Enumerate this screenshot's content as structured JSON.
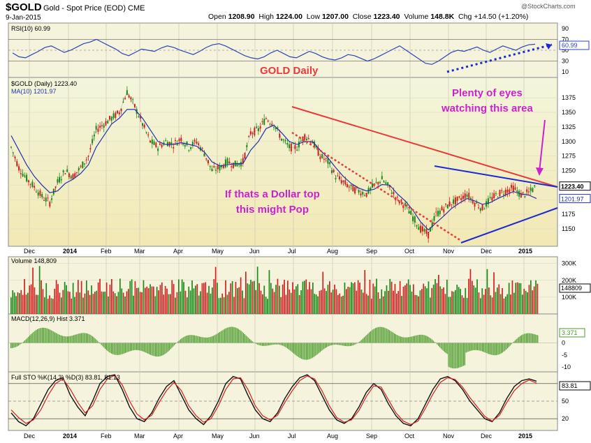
{
  "header": {
    "symbol": "$GOLD",
    "description": "Gold - Spot Price (EOD)  CME",
    "date": "9-Jan-2015",
    "watermark": "@StockCharts.com",
    "open_label": "Open",
    "open": "1208.90",
    "high_label": "High",
    "high": "1224.00",
    "low_label": "Low",
    "low": "1207.00",
    "close_label": "Close",
    "close": "1223.40",
    "volume_label": "Volume",
    "volume": "148.8K",
    "chg_label": "Chg",
    "chg": "+14.50 (+1.20%)"
  },
  "annotations": {
    "gold_daily": "GOLD Daily",
    "plenty_line1": "Plenty of eyes",
    "plenty_line2": "watching this area",
    "dollar_line1": "If thats a  Dollar top",
    "dollar_line2": "this might Pop"
  },
  "colors": {
    "panel_bg": "#f5f3dc",
    "price_bg_top": "#f3f6dc",
    "price_bg_bottom": "#f2e8b4",
    "up": "#1a8a1a",
    "down": "#d42020",
    "ma": "#2233aa",
    "rsi": "#2a44bb",
    "trend_red": "#e83a3a",
    "trend_blue": "#1a2ad0",
    "annot_red": "#e83a3a",
    "annot_magenta": "#cc22cc"
  },
  "chart_data": [
    {
      "type": "line",
      "title": "RSI(10) 60.99",
      "value_label": "60.99",
      "ylim": [
        0,
        100
      ],
      "y_ticks": [
        "90",
        "70",
        "50",
        "30",
        "10"
      ],
      "ref_lines": [
        70,
        30
      ],
      "series": [
        {
          "name": "RSI(10)",
          "values": [
            45,
            38,
            36,
            42,
            48,
            55,
            58,
            52,
            46,
            50,
            56,
            62,
            65,
            70,
            64,
            58,
            52,
            44,
            40,
            46,
            52,
            50,
            48,
            54,
            58,
            55,
            50,
            46,
            42,
            48,
            55,
            60,
            62,
            58,
            52,
            46,
            40,
            36,
            34,
            38,
            45,
            50,
            44,
            38,
            36,
            42,
            48,
            44,
            38,
            34,
            32,
            36,
            42,
            40,
            35,
            30,
            34,
            40,
            46,
            52,
            58,
            50,
            42,
            34,
            26,
            24,
            30,
            38,
            46,
            50,
            48,
            52,
            56,
            50,
            46,
            52,
            58,
            54,
            50,
            56,
            60,
            61
          ]
        }
      ]
    },
    {
      "type": "line",
      "title": "$GOLD (Daily) 1223.40",
      "ma_label": "MA(10) 1201.97",
      "last_price": "1223.40",
      "last_ma": "1201.97",
      "ylim": [
        1120,
        1410
      ],
      "y_ticks": [
        "1375",
        "1350",
        "1325",
        "1300",
        "1275",
        "1250",
        "1225",
        "1200",
        "1175",
        "1150"
      ],
      "x_tick_labels": [
        "Dec",
        "2014",
        "Feb",
        "Mar",
        "Apr",
        "May",
        "Jun",
        "Jul",
        "Aug",
        "Sep",
        "Oct",
        "Nov",
        "Dec",
        "2015"
      ],
      "series": [
        {
          "name": "$GOLD",
          "values": [
            1290,
            1255,
            1236,
            1222,
            1205,
            1195,
            1230,
            1250,
            1240,
            1255,
            1275,
            1320,
            1330,
            1340,
            1350,
            1385,
            1360,
            1330,
            1300,
            1290,
            1300,
            1295,
            1305,
            1290,
            1300,
            1280,
            1250,
            1255,
            1265,
            1260,
            1265,
            1315,
            1320,
            1340,
            1330,
            1305,
            1290,
            1290,
            1310,
            1300,
            1275,
            1265,
            1240,
            1230,
            1220,
            1215,
            1210,
            1225,
            1235,
            1220,
            1200,
            1190,
            1170,
            1150,
            1140,
            1175,
            1185,
            1195,
            1200,
            1210,
            1195,
            1185,
            1200,
            1210,
            1215,
            1220,
            1208,
            1212,
            1223
          ]
        },
        {
          "name": "MA(10)",
          "values": [
            1310,
            1285,
            1260,
            1240,
            1225,
            1212,
            1215,
            1228,
            1235,
            1245,
            1260,
            1290,
            1310,
            1330,
            1340,
            1355,
            1355,
            1340,
            1320,
            1300,
            1295,
            1295,
            1298,
            1295,
            1292,
            1282,
            1265,
            1258,
            1260,
            1262,
            1262,
            1285,
            1300,
            1322,
            1328,
            1315,
            1300,
            1295,
            1300,
            1300,
            1285,
            1272,
            1255,
            1240,
            1228,
            1220,
            1215,
            1218,
            1226,
            1225,
            1210,
            1198,
            1182,
            1162,
            1148,
            1160,
            1172,
            1185,
            1194,
            1202,
            1198,
            1192,
            1195,
            1202,
            1208,
            1214,
            1210,
            1208,
            1202
          ]
        }
      ]
    },
    {
      "type": "bar",
      "title": "Volume 148,809",
      "value_label": "148809",
      "ylim": [
        0,
        340000
      ],
      "y_ticks": [
        "300K",
        "200K",
        "100K"
      ]
    },
    {
      "type": "bar",
      "title": "MACD(12,26,9) Hist 3.371",
      "value_label": "3.371",
      "ylim": [
        -12,
        12
      ],
      "y_ticks": [
        "5",
        "0",
        "-5",
        "-10"
      ]
    },
    {
      "type": "line",
      "title": "Full STO %K(14,3) %D(3) 83.81, 81.13",
      "value_label": "83.81",
      "ylim": [
        0,
        100
      ],
      "y_ticks": [
        "80",
        "50",
        "20"
      ],
      "ref_lines": [
        80,
        50,
        20
      ],
      "x_tick_labels": [
        "Dec",
        "2014",
        "Feb",
        "Mar",
        "Apr",
        "May",
        "Jun",
        "Jul",
        "Aug",
        "Sep",
        "Oct",
        "Nov",
        "Dec",
        "2015"
      ],
      "series": [
        {
          "name": "%K",
          "values": [
            30,
            15,
            8,
            20,
            45,
            70,
            85,
            90,
            60,
            40,
            25,
            50,
            80,
            92,
            95,
            70,
            40,
            20,
            15,
            30,
            55,
            75,
            85,
            60,
            35,
            20,
            10,
            25,
            50,
            80,
            92,
            88,
            60,
            35,
            20,
            15,
            30,
            55,
            75,
            90,
            95,
            85,
            60,
            35,
            18,
            12,
            20,
            40,
            65,
            80,
            70,
            45,
            25,
            12,
            8,
            20,
            45,
            70,
            88,
            92,
            85,
            70,
            50,
            35,
            20,
            15,
            30,
            55,
            75,
            85,
            88,
            84
          ]
        },
        {
          "name": "%D",
          "values": [
            35,
            22,
            12,
            18,
            35,
            60,
            80,
            88,
            70,
            48,
            30,
            42,
            70,
            88,
            94,
            78,
            50,
            28,
            18,
            26,
            48,
            68,
            82,
            68,
            42,
            25,
            14,
            20,
            42,
            70,
            88,
            90,
            70,
            42,
            25,
            18,
            26,
            48,
            68,
            85,
            93,
            88,
            68,
            42,
            22,
            14,
            18,
            34,
            58,
            76,
            74,
            52,
            30,
            16,
            10,
            16,
            38,
            62,
            82,
            90,
            87,
            74,
            56,
            40,
            24,
            16,
            26,
            48,
            68,
            80,
            86,
            81
          ]
        }
      ]
    }
  ]
}
